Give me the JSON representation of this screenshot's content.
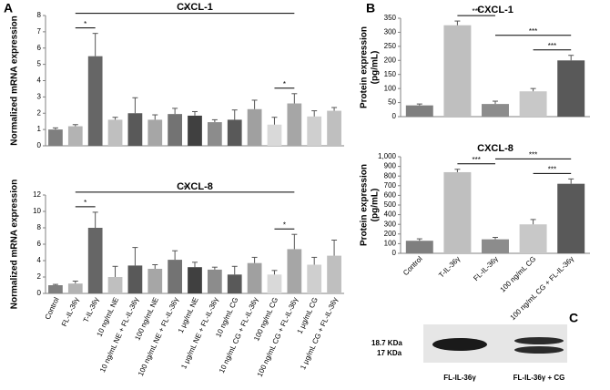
{
  "panel_labels": [
    "A",
    "B",
    "C"
  ],
  "chart_data": [
    {
      "type": "bar",
      "title": "CXCL-1",
      "ylabel": [
        "Normalized mRNA expression"
      ],
      "categories": [
        "Control",
        "FL-IL-36γ",
        "T-IL-36γ",
        "10 ng/mL NE",
        "10 ng/mL NE + FL-IL-36γ",
        "100 ng/mL NE",
        "100 ng/mL NE + FL-IL-36γ",
        "1 μg/mL NE",
        "1 μg/mL NE + FL-IL-36γ",
        "10 ng/mL CG",
        "10 ng/mL CG + FL-IL-36γ",
        "100 ng/mL CG",
        "100 ng/mL CG + FL-IL-36γ",
        "1 μg/mL CG",
        "1 μg/mL CG + FL-IL-36γ"
      ],
      "values": [
        1.0,
        1.2,
        5.5,
        1.6,
        2.0,
        1.6,
        1.95,
        1.85,
        1.45,
        1.6,
        2.25,
        1.3,
        2.6,
        1.8,
        2.15
      ],
      "errors": [
        0.1,
        0.1,
        1.4,
        0.15,
        0.95,
        0.3,
        0.35,
        0.25,
        0.15,
        0.6,
        0.55,
        0.45,
        0.6,
        0.35,
        0.2
      ],
      "colors": [
        "#7f7f7f",
        "#b3b3b3",
        "#666666",
        "#bfbfbf",
        "#595959",
        "#a6a6a6",
        "#737373",
        "#404040",
        "#8c8c8c",
        "#595959",
        "#a0a0a0",
        "#d9d9d9",
        "#a6a6a6",
        "#cfcfcf",
        "#bfbfbf"
      ],
      "ylim": [
        0,
        8
      ],
      "yticks": [
        0,
        1,
        2,
        3,
        4,
        5,
        6,
        7,
        8
      ],
      "significance": [
        {
          "from": 1,
          "to": 2,
          "label": "*"
        },
        {
          "from": 11,
          "to": 12,
          "label": "*"
        },
        {
          "from": 1,
          "to": 12,
          "label": "*"
        }
      ]
    },
    {
      "type": "bar",
      "title": "CXCL-8",
      "ylabel": [
        "Normalized mRNA expression"
      ],
      "categories": [
        "Control",
        "FL-IL-36γ",
        "T-IL-36γ",
        "10 ng/mL NE",
        "10 ng/mL NE + FL-IL-36γ",
        "100 ng/mL NE",
        "100 ng/mL NE + FL-IL-36γ",
        "1 μg/mL NE",
        "1 μg/mL NE + FL-IL-36γ",
        "10 ng/mL CG",
        "10 ng/mL CG + FL-IL-36γ",
        "100 ng/mL CG",
        "100 ng/mL CG + FL-IL-36γ",
        "1 μg/mL CG",
        "1 μg/mL CG + FL-IL-36γ"
      ],
      "values": [
        1.0,
        1.2,
        8.0,
        2.0,
        3.4,
        3.0,
        4.1,
        3.2,
        2.9,
        2.3,
        3.7,
        2.3,
        5.4,
        3.5,
        4.6
      ],
      "errors": [
        0.1,
        0.3,
        1.9,
        1.3,
        2.2,
        0.5,
        1.1,
        0.6,
        0.3,
        1.0,
        0.7,
        0.5,
        1.8,
        0.9,
        1.9
      ],
      "colors": [
        "#7f7f7f",
        "#b3b3b3",
        "#666666",
        "#bfbfbf",
        "#595959",
        "#a6a6a6",
        "#737373",
        "#404040",
        "#8c8c8c",
        "#595959",
        "#a0a0a0",
        "#d9d9d9",
        "#a6a6a6",
        "#cfcfcf",
        "#bfbfbf"
      ],
      "ylim": [
        0,
        12
      ],
      "yticks": [
        0,
        2,
        4,
        6,
        8,
        10,
        12
      ],
      "significance": [
        {
          "from": 1,
          "to": 2,
          "label": "*"
        },
        {
          "from": 11,
          "to": 12,
          "label": "*"
        },
        {
          "from": 1,
          "to": 12,
          "label": "*"
        }
      ]
    },
    {
      "type": "bar",
      "title": "CXCL-1",
      "ylabel": [
        "Protein expression",
        "(pg/mL)"
      ],
      "categories": [
        "Control",
        "T-IL-36γ",
        "FL-IL-36γ",
        "100 ng/mL CG",
        "100 ng/mL CG + FL-IL-36γ"
      ],
      "values": [
        40,
        325,
        45,
        90,
        200
      ],
      "errors": [
        5,
        15,
        10,
        10,
        18
      ],
      "colors": [
        "#7f7f7f",
        "#bfbfbf",
        "#8c8c8c",
        "#c8c8c8",
        "#595959"
      ],
      "ylim": [
        0,
        350
      ],
      "yticks": [
        0,
        50,
        100,
        150,
        200,
        250,
        300,
        350
      ],
      "significance": [
        {
          "from": 1,
          "to": 2,
          "label": "***"
        },
        {
          "from": 3,
          "to": 4,
          "label": "***"
        },
        {
          "from": 2,
          "to": 4,
          "label": "***"
        }
      ]
    },
    {
      "type": "bar",
      "title": "CXCL-8",
      "ylabel": [
        "Protein expression",
        "(pg/mL)"
      ],
      "categories": [
        "Control",
        "T-IL-36γ",
        "FL-IL-36γ",
        "100 ng/mL CG",
        "100 ng/mL CG + FL-IL-36γ"
      ],
      "values": [
        130,
        840,
        145,
        300,
        720
      ],
      "errors": [
        20,
        30,
        20,
        50,
        50
      ],
      "colors": [
        "#7f7f7f",
        "#bfbfbf",
        "#8c8c8c",
        "#c8c8c8",
        "#595959"
      ],
      "ylim": [
        0,
        1000
      ],
      "yticks": [
        0,
        100,
        200,
        300,
        400,
        500,
        600,
        700,
        800,
        900,
        {
          "value": 1000,
          "label": "1,000"
        }
      ],
      "significance": [
        {
          "from": 1,
          "to": 2,
          "label": "***"
        },
        {
          "from": 3,
          "to": 4,
          "label": "***"
        },
        {
          "from": 2,
          "to": 4,
          "label": "***"
        }
      ]
    }
  ],
  "blot": {
    "markers": [
      "18.7 KDa",
      "17 KDa"
    ],
    "lanes": [
      "FL-IL-36γ",
      "FL-IL-36γ + CG"
    ]
  }
}
